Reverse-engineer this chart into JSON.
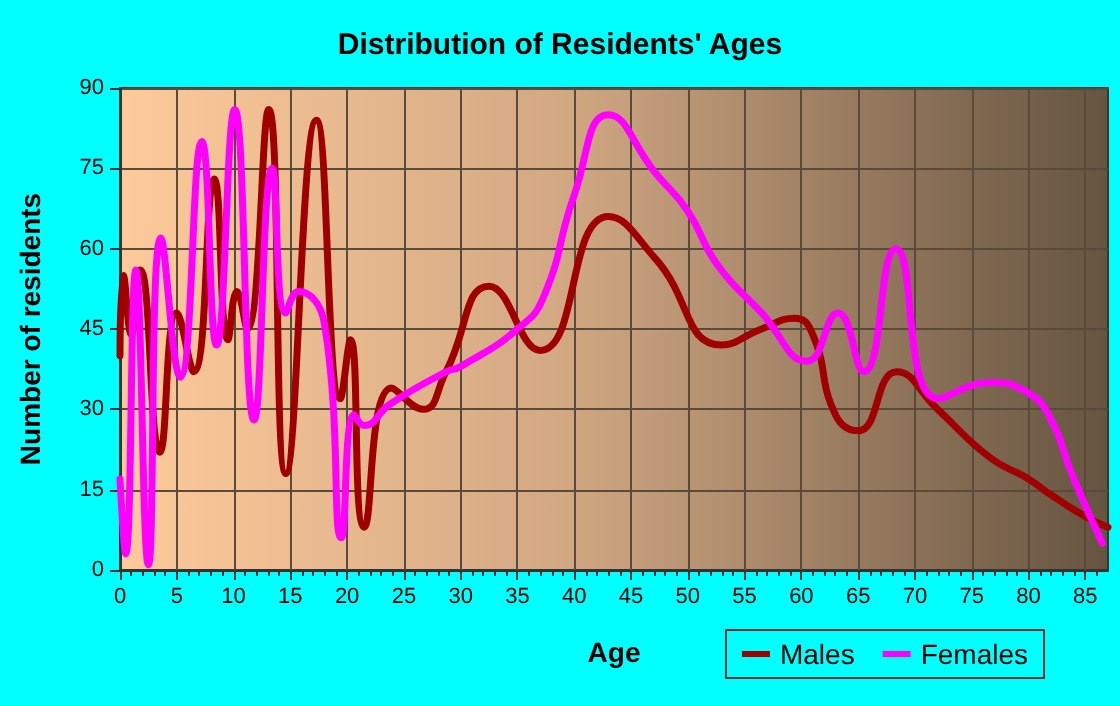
{
  "chart_data": {
    "type": "line",
    "title": "Distribution of Residents' Ages",
    "xlabel": "Age",
    "ylabel": "Number of residents",
    "xlim": [
      0,
      87
    ],
    "xticks": [
      0,
      5,
      10,
      15,
      20,
      25,
      30,
      35,
      40,
      45,
      50,
      55,
      60,
      65,
      70,
      75,
      80,
      85
    ],
    "ylim": [
      0,
      90
    ],
    "yticks": [
      0,
      15,
      30,
      45,
      60,
      75,
      90
    ],
    "grid": true,
    "legend": "bottom right",
    "marker": "none",
    "line_style": "solid",
    "series": [
      {
        "name": "Males",
        "color": "#a00000",
        "x": [
          0,
          0.3,
          1,
          1.8,
          3.5,
          5,
          6.5,
          8.3,
          9.5,
          10.3,
          11.2,
          13.1,
          14.6,
          17.3,
          19.4,
          20.3,
          21.5,
          23.9,
          26.7,
          28.7,
          32.5,
          37,
          43,
          47.2,
          53,
          56.5,
          59.4,
          61,
          63,
          65,
          68.4,
          72,
          76.6,
          80,
          82,
          85,
          87
        ],
        "values": [
          40,
          55,
          44,
          56,
          22,
          48,
          37,
          73,
          43,
          52,
          45,
          86,
          18,
          84,
          32,
          43,
          8,
          34,
          30,
          37,
          53,
          41,
          66,
          58,
          42,
          45,
          47,
          44,
          29,
          26,
          37,
          30,
          21,
          17,
          14,
          10,
          8
        ]
      },
      {
        "name": "Females",
        "color": "#ff00ff",
        "x": [
          0,
          0.5,
          1.4,
          2.5,
          3.6,
          5.3,
          7.2,
          8.5,
          10.1,
          11.8,
          13.4,
          14.6,
          15.7,
          18,
          19.5,
          20.6,
          21.5,
          23.8,
          28.7,
          30,
          35,
          37.3,
          40,
          43,
          47.2,
          50,
          52.6,
          56.5,
          60.5,
          63.2,
          65.5,
          68.3,
          72,
          76.6,
          80,
          82,
          83.8,
          86.5
        ],
        "values": [
          17,
          3,
          56,
          1,
          62,
          36,
          80,
          42,
          86,
          28,
          75,
          48,
          52,
          46,
          6,
          29,
          27,
          31,
          37,
          38,
          45,
          51,
          70,
          85,
          74,
          67,
          57,
          48,
          39,
          48,
          37,
          60,
          32,
          35,
          33,
          28,
          18,
          5
        ]
      }
    ]
  }
}
